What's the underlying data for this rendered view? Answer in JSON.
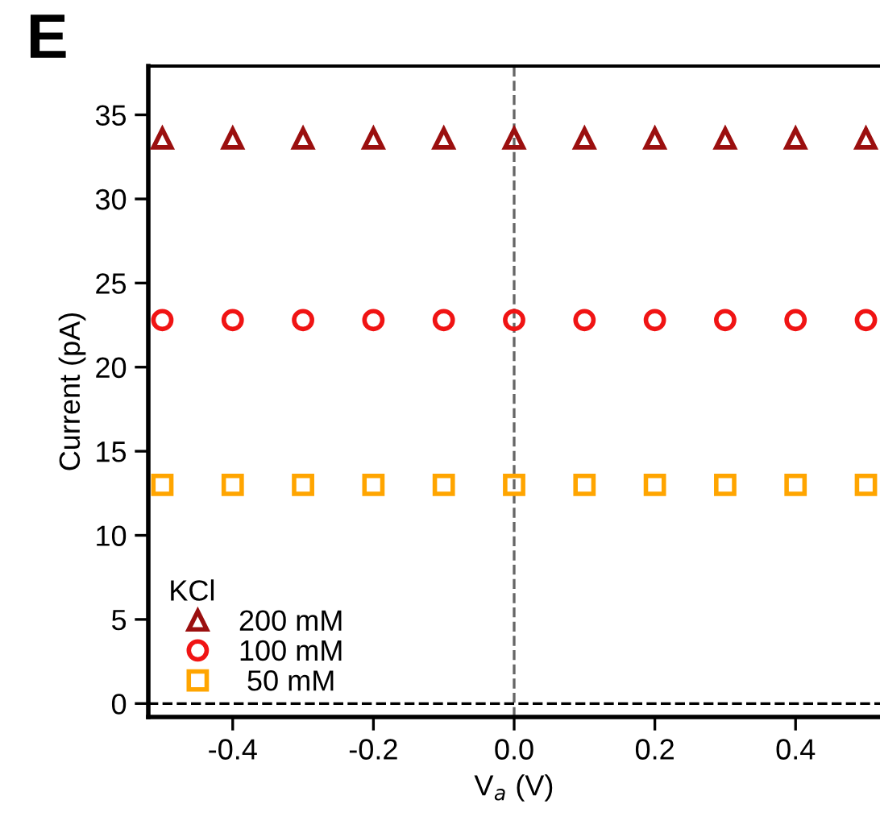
{
  "chart_data": {
    "type": "scatter",
    "xlabel": "V$_{a}$ (V)",
    "ylabel": "Current (pA)",
    "legend_title": "KCl",
    "legend": "bottom left",
    "annotations": [
      "E"
    ],
    "x": [
      -0.5,
      -0.4,
      -0.3,
      -0.2,
      -0.1,
      0.0,
      0.1,
      0.2,
      0.3,
      0.4,
      0.5
    ],
    "series": [
      {
        "name": "200 mM",
        "color": "#9b0f0f",
        "marker": "triangle",
        "values": [
          33.6,
          33.6,
          33.6,
          33.6,
          33.6,
          33.6,
          33.6,
          33.6,
          33.6,
          33.6,
          33.6
        ]
      },
      {
        "name": "100 mM",
        "color": "#f01414",
        "marker": "circle",
        "values": [
          22.8,
          22.8,
          22.8,
          22.8,
          22.8,
          22.8,
          22.8,
          22.8,
          22.8,
          22.8,
          22.8
        ]
      },
      {
        "name": " 50 mM",
        "color": "#ffa500",
        "marker": "square",
        "values": [
          13.0,
          13.0,
          13.0,
          13.0,
          13.0,
          13.0,
          13.0,
          13.0,
          13.0,
          13.0,
          13.0
        ]
      }
    ],
    "xlim": [
      -0.52,
      0.52
    ],
    "ylim": [
      -0.8,
      37.9
    ],
    "xticks": [
      {
        "value": -0.4,
        "label": "-0.4"
      },
      {
        "value": -0.2,
        "label": "-0.2"
      },
      {
        "value": 0,
        "label": "0.0"
      },
      {
        "value": 0.2,
        "label": "0.2"
      },
      {
        "value": 0.4,
        "label": "0.4"
      }
    ],
    "yticks": [
      0,
      5,
      10,
      15,
      20,
      25,
      30,
      35
    ],
    "ref_lines": [
      {
        "axis": "x",
        "value": 0,
        "color": "#666666",
        "line_style": "dashed"
      },
      {
        "axis": "y",
        "value": 0,
        "color": "#000000",
        "line_style": "dashed"
      }
    ],
    "grid": false
  }
}
